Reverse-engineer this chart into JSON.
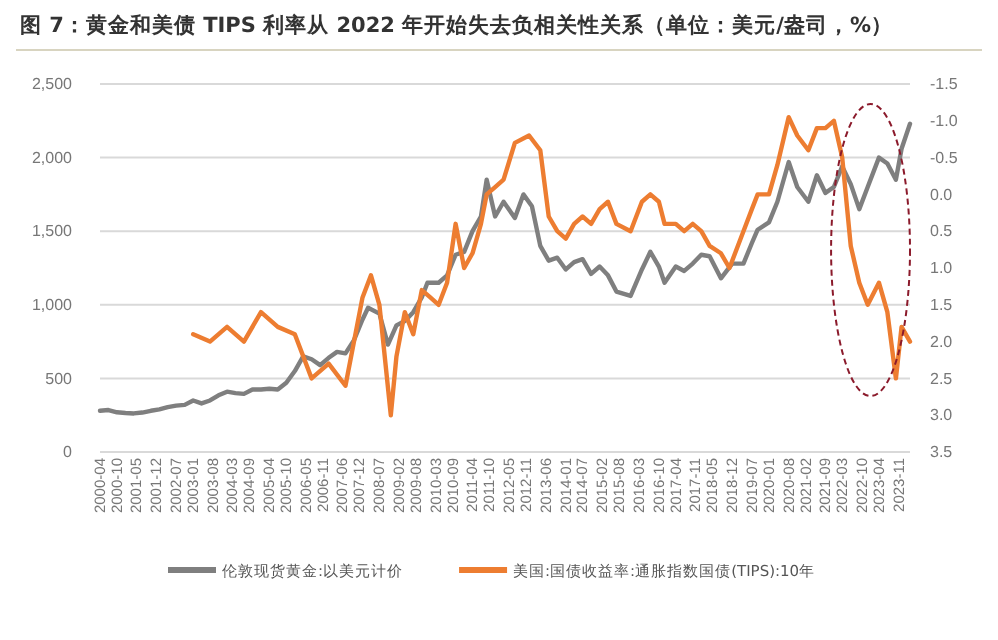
{
  "chart_data": {
    "type": "line",
    "title": "图 7：黄金和美债 TIPS 利率从 2022 年开始失去负相关性关系（单位：美元/盎司，%）",
    "xlim": [
      "2000-04",
      "2024-03"
    ],
    "xticks": [
      "2000-04",
      "2000-10",
      "2001-05",
      "2001-12",
      "2002-07",
      "2003-01",
      "2003-08",
      "2004-03",
      "2004-09",
      "2005-04",
      "2005-10",
      "2006-05",
      "2006-11",
      "2007-06",
      "2007-12",
      "2008-07",
      "2009-02",
      "2009-08",
      "2010-03",
      "2010-09",
      "2011-04",
      "2011-10",
      "2012-05",
      "2012-11",
      "2013-06",
      "2014-01",
      "2014-07",
      "2015-02",
      "2015-08",
      "2016-03",
      "2016-10",
      "2017-04",
      "2017-11",
      "2018-05",
      "2018-12",
      "2019-07",
      "2020-01",
      "2020-08",
      "2021-02",
      "2021-09",
      "2022-03",
      "2022-10",
      "2023-04",
      "2023-11"
    ],
    "ylim": [
      0,
      2500
    ],
    "yticks": [
      0,
      {
        "value": 500,
        "label": "500"
      },
      {
        "value": 1000,
        "label": "1,000"
      },
      {
        "value": 1500,
        "label": "1,500"
      },
      {
        "value": 2000,
        "label": "2,000"
      },
      {
        "value": 2500,
        "label": "2,500"
      }
    ],
    "y2lim": [
      3.5,
      -1.5
    ],
    "y2ticks": [
      {
        "value": 3.5,
        "label": "3.5"
      },
      {
        "value": 3,
        "label": "3.0"
      },
      {
        "value": 2.5,
        "label": "2.5"
      },
      {
        "value": 2,
        "label": "2.0"
      },
      {
        "value": 1.5,
        "label": "1.5"
      },
      {
        "value": 1,
        "label": "1.0"
      },
      {
        "value": 0.5,
        "label": "0.5"
      },
      {
        "value": 0,
        "label": "0.0"
      },
      {
        "value": -0.5,
        "label": "-0.5"
      },
      {
        "value": -1,
        "label": "-1.0"
      },
      {
        "value": -1.5,
        "label": "-1.5"
      }
    ],
    "grid": "y",
    "legend": "bottom",
    "marker": "none",
    "line_style": "solid",
    "series": [
      {
        "name": "伦敦现货黄金:以美元计价",
        "color": "#7f7f7f",
        "x": [
          "2000-04",
          "2000-07",
          "2000-10",
          "2001-01",
          "2001-04",
          "2001-07",
          "2001-10",
          "2002-01",
          "2002-04",
          "2002-07",
          "2002-10",
          "2003-01",
          "2003-04",
          "2003-07",
          "2003-10",
          "2004-01",
          "2004-04",
          "2004-07",
          "2004-10",
          "2005-01",
          "2005-04",
          "2005-07",
          "2005-10",
          "2006-01",
          "2006-04",
          "2006-07",
          "2006-10",
          "2007-01",
          "2007-04",
          "2007-07",
          "2007-10",
          "2008-01",
          "2008-03",
          "2008-07",
          "2008-10",
          "2009-01",
          "2009-04",
          "2009-07",
          "2009-10",
          "2009-12",
          "2010-04",
          "2010-07",
          "2010-10",
          "2011-01",
          "2011-04",
          "2011-07",
          "2011-09",
          "2011-12",
          "2012-03",
          "2012-07",
          "2012-10",
          "2013-01",
          "2013-04",
          "2013-07",
          "2013-10",
          "2014-01",
          "2014-04",
          "2014-07",
          "2014-10",
          "2015-01",
          "2015-04",
          "2015-07",
          "2015-12",
          "2016-04",
          "2016-07",
          "2016-10",
          "2016-12",
          "2017-04",
          "2017-07",
          "2017-10",
          "2018-01",
          "2018-04",
          "2018-08",
          "2018-12",
          "2019-04",
          "2019-07",
          "2019-09",
          "2020-01",
          "2020-04",
          "2020-08",
          "2020-11",
          "2021-03",
          "2021-06",
          "2021-09",
          "2021-12",
          "2022-03",
          "2022-06",
          "2022-09",
          "2022-12",
          "2023-04",
          "2023-07",
          "2023-10",
          "2023-12",
          "2024-03"
        ],
        "values": [
          280,
          285,
          270,
          265,
          262,
          268,
          280,
          290,
          305,
          315,
          320,
          350,
          330,
          350,
          385,
          410,
          400,
          395,
          425,
          425,
          430,
          425,
          470,
          550,
          650,
          630,
          590,
          640,
          680,
          670,
          760,
          900,
          980,
          940,
          730,
          860,
          890,
          950,
          1050,
          1150,
          1150,
          1200,
          1340,
          1360,
          1500,
          1600,
          1850,
          1600,
          1700,
          1590,
          1750,
          1670,
          1400,
          1300,
          1320,
          1240,
          1290,
          1310,
          1210,
          1260,
          1200,
          1090,
          1060,
          1240,
          1360,
          1260,
          1150,
          1260,
          1230,
          1280,
          1340,
          1330,
          1180,
          1280,
          1280,
          1420,
          1510,
          1560,
          1700,
          1970,
          1800,
          1700,
          1880,
          1760,
          1800,
          1940,
          1820,
          1650,
          1800,
          2000,
          1960,
          1850,
          2060,
          2230
        ]
      },
      {
        "name": "美国:国债收益率:通胀指数国债(TIPS):10年",
        "color": "#ed7d31",
        "axis": "y2",
        "x": [
          "2003-01",
          "2003-07",
          "2004-01",
          "2004-07",
          "2005-01",
          "2005-07",
          "2006-01",
          "2006-07",
          "2007-01",
          "2007-07",
          "2008-01",
          "2008-04",
          "2008-07",
          "2008-11",
          "2009-01",
          "2009-04",
          "2009-07",
          "2009-10",
          "2010-01",
          "2010-04",
          "2010-07",
          "2010-10",
          "2011-01",
          "2011-04",
          "2011-07",
          "2011-09",
          "2011-12",
          "2012-03",
          "2012-07",
          "2012-12",
          "2013-04",
          "2013-07",
          "2013-10",
          "2014-01",
          "2014-04",
          "2014-07",
          "2014-10",
          "2015-01",
          "2015-04",
          "2015-07",
          "2015-12",
          "2016-04",
          "2016-07",
          "2016-10",
          "2016-12",
          "2017-04",
          "2017-07",
          "2017-10",
          "2018-01",
          "2018-04",
          "2018-08",
          "2018-11",
          "2019-04",
          "2019-07",
          "2019-09",
          "2020-01",
          "2020-04",
          "2020-08",
          "2020-11",
          "2021-03",
          "2021-06",
          "2021-09",
          "2021-12",
          "2022-03",
          "2022-06",
          "2022-09",
          "2022-12",
          "2023-04",
          "2023-07",
          "2023-10",
          "2023-12",
          "2024-03"
        ],
        "values": [
          1.9,
          2.0,
          1.8,
          2.0,
          1.6,
          1.8,
          1.9,
          2.5,
          2.3,
          2.6,
          1.4,
          1.1,
          1.5,
          3.0,
          2.2,
          1.6,
          1.9,
          1.3,
          1.4,
          1.5,
          1.2,
          0.4,
          1.0,
          0.8,
          0.4,
          0.0,
          -0.1,
          -0.2,
          -0.7,
          -0.8,
          -0.6,
          0.3,
          0.5,
          0.6,
          0.4,
          0.3,
          0.4,
          0.2,
          0.1,
          0.4,
          0.5,
          0.1,
          0.0,
          0.1,
          0.4,
          0.4,
          0.5,
          0.4,
          0.5,
          0.7,
          0.8,
          1.0,
          0.5,
          0.2,
          0.0,
          0.0,
          -0.4,
          -1.05,
          -0.8,
          -0.6,
          -0.9,
          -0.9,
          -1.0,
          -0.5,
          0.7,
          1.2,
          1.5,
          1.2,
          1.6,
          2.5,
          1.8,
          2.0
        ]
      }
    ]
  }
}
